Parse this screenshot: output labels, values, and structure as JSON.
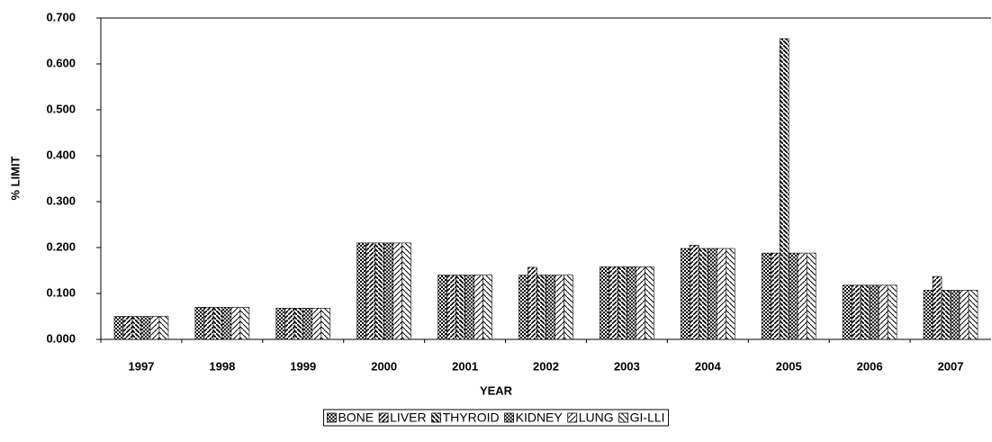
{
  "chart_data": {
    "type": "bar",
    "xlabel": "YEAR",
    "ylabel": "% LIMIT",
    "categories": [
      "1997",
      "1998",
      "1999",
      "2000",
      "2001",
      "2002",
      "2003",
      "2004",
      "2005",
      "2006",
      "2007"
    ],
    "series": [
      {
        "name": "BONE",
        "color": "#000000",
        "values": [
          0.05,
          0.07,
          0.068,
          0.21,
          0.14,
          0.14,
          0.158,
          0.198,
          0.188,
          0.118,
          0.107
        ]
      },
      {
        "name": "LIVER",
        "color": "#000000",
        "values": [
          0.05,
          0.07,
          0.068,
          0.21,
          0.14,
          0.157,
          0.158,
          0.205,
          0.188,
          0.118,
          0.137
        ]
      },
      {
        "name": "THYROID",
        "color": "#000000",
        "values": [
          0.05,
          0.07,
          0.068,
          0.21,
          0.14,
          0.14,
          0.158,
          0.198,
          0.655,
          0.118,
          0.107
        ]
      },
      {
        "name": "KIDNEY",
        "color": "#000000",
        "values": [
          0.05,
          0.07,
          0.068,
          0.21,
          0.14,
          0.14,
          0.158,
          0.198,
          0.188,
          0.118,
          0.107
        ]
      },
      {
        "name": "LUNG",
        "color": "#000000",
        "values": [
          0.05,
          0.07,
          0.068,
          0.21,
          0.14,
          0.14,
          0.158,
          0.198,
          0.188,
          0.118,
          0.107
        ]
      },
      {
        "name": "GI-LLI",
        "color": "#000000",
        "values": [
          0.05,
          0.07,
          0.068,
          0.21,
          0.14,
          0.14,
          0.158,
          0.198,
          0.188,
          0.118,
          0.107
        ]
      }
    ],
    "ylim": [
      0,
      0.7
    ],
    "yticks": [
      {
        "value": 0,
        "label": "0.000"
      },
      {
        "value": 0.1,
        "label": "0.100"
      },
      {
        "value": 0.2,
        "label": "0.200"
      },
      {
        "value": 0.3,
        "label": "0.300"
      },
      {
        "value": 0.4,
        "label": "0.400"
      },
      {
        "value": 0.5,
        "label": "0.500"
      },
      {
        "value": 0.6,
        "label": "0.600"
      },
      {
        "value": 0.7,
        "label": "0.700"
      }
    ],
    "grid": false,
    "legend": "bottom"
  }
}
